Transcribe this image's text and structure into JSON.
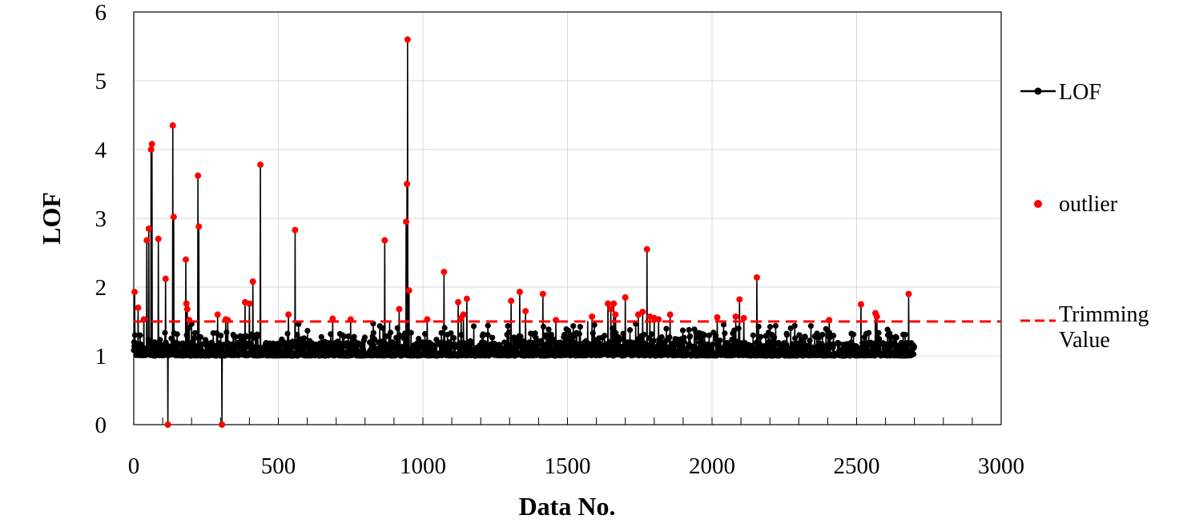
{
  "chart_data": {
    "type": "line",
    "xlabel": "Data No.",
    "ylabel": "LOF",
    "xlim": [
      0,
      3000
    ],
    "ylim": [
      0,
      6
    ],
    "x_ticks": [
      "0",
      "500",
      "1000",
      "1500",
      "2000",
      "2500",
      "3000"
    ],
    "y_ticks": [
      "0",
      "1",
      "2",
      "3",
      "4",
      "5",
      "6"
    ],
    "grid": true,
    "legend_placement": "right",
    "n_points": 2700,
    "trimming_value": 1.5,
    "series": [
      {
        "name": "LOF",
        "style": "black line with point markers",
        "color": "#000000",
        "description_of_values": "baseline around 1.0-1.3 for data no. 0-2700 with spikes listed below",
        "peaks": [
          {
            "x": 3,
            "y": 1.93
          },
          {
            "x": 15,
            "y": 1.7
          },
          {
            "x": 35,
            "y": 1.53
          },
          {
            "x": 45,
            "y": 2.68
          },
          {
            "x": 52,
            "y": 2.85
          },
          {
            "x": 60,
            "y": 4.0
          },
          {
            "x": 63,
            "y": 4.08
          },
          {
            "x": 85,
            "y": 2.7
          },
          {
            "x": 110,
            "y": 2.12
          },
          {
            "x": 118,
            "y": 0.0
          },
          {
            "x": 135,
            "y": 4.35
          },
          {
            "x": 138,
            "y": 3.02
          },
          {
            "x": 180,
            "y": 2.4
          },
          {
            "x": 182,
            "y": 1.76
          },
          {
            "x": 185,
            "y": 1.68
          },
          {
            "x": 192,
            "y": 1.52
          },
          {
            "x": 222,
            "y": 3.62
          },
          {
            "x": 225,
            "y": 2.88
          },
          {
            "x": 290,
            "y": 1.6
          },
          {
            "x": 305,
            "y": 0.0
          },
          {
            "x": 318,
            "y": 1.53
          },
          {
            "x": 325,
            "y": 1.52
          },
          {
            "x": 385,
            "y": 1.78
          },
          {
            "x": 400,
            "y": 1.76
          },
          {
            "x": 412,
            "y": 2.08
          },
          {
            "x": 438,
            "y": 3.78
          },
          {
            "x": 535,
            "y": 1.6
          },
          {
            "x": 558,
            "y": 2.83
          },
          {
            "x": 688,
            "y": 1.54
          },
          {
            "x": 750,
            "y": 1.53
          },
          {
            "x": 868,
            "y": 2.68
          },
          {
            "x": 885,
            "y": 1.5
          },
          {
            "x": 918,
            "y": 1.68
          },
          {
            "x": 942,
            "y": 2.95
          },
          {
            "x": 945,
            "y": 3.5
          },
          {
            "x": 947,
            "y": 5.6
          },
          {
            "x": 952,
            "y": 1.95
          },
          {
            "x": 1015,
            "y": 1.53
          },
          {
            "x": 1073,
            "y": 2.22
          },
          {
            "x": 1122,
            "y": 1.78
          },
          {
            "x": 1132,
            "y": 1.55
          },
          {
            "x": 1140,
            "y": 1.6
          },
          {
            "x": 1152,
            "y": 1.83
          },
          {
            "x": 1305,
            "y": 1.8
          },
          {
            "x": 1335,
            "y": 1.93
          },
          {
            "x": 1355,
            "y": 1.65
          },
          {
            "x": 1415,
            "y": 1.9
          },
          {
            "x": 1460,
            "y": 1.52
          },
          {
            "x": 1570,
            "y": 1.5
          },
          {
            "x": 1585,
            "y": 1.57
          },
          {
            "x": 1640,
            "y": 1.76
          },
          {
            "x": 1650,
            "y": 1.68
          },
          {
            "x": 1660,
            "y": 1.76
          },
          {
            "x": 1666,
            "y": 1.6
          },
          {
            "x": 1700,
            "y": 1.85
          },
          {
            "x": 1745,
            "y": 1.6
          },
          {
            "x": 1760,
            "y": 1.64
          },
          {
            "x": 1775,
            "y": 2.55
          },
          {
            "x": 1785,
            "y": 1.57
          },
          {
            "x": 1800,
            "y": 1.55
          },
          {
            "x": 1815,
            "y": 1.53
          },
          {
            "x": 1855,
            "y": 1.6
          },
          {
            "x": 2018,
            "y": 1.56
          },
          {
            "x": 2082,
            "y": 1.57
          },
          {
            "x": 2095,
            "y": 1.82
          },
          {
            "x": 2110,
            "y": 1.55
          },
          {
            "x": 2155,
            "y": 2.14
          },
          {
            "x": 2405,
            "y": 1.52
          },
          {
            "x": 2515,
            "y": 1.75
          },
          {
            "x": 2565,
            "y": 1.62
          },
          {
            "x": 2570,
            "y": 1.57
          },
          {
            "x": 2680,
            "y": 1.9
          }
        ]
      },
      {
        "name": "outlier",
        "style": "red markers",
        "color": "#ff0000",
        "description_of_values": "red markers on every LOF point above the trimming value and on points at 0"
      },
      {
        "name": "Trimming Value",
        "style": "red dashed horizontal line",
        "color": "#ff0000",
        "y": 1.5
      }
    ]
  }
}
